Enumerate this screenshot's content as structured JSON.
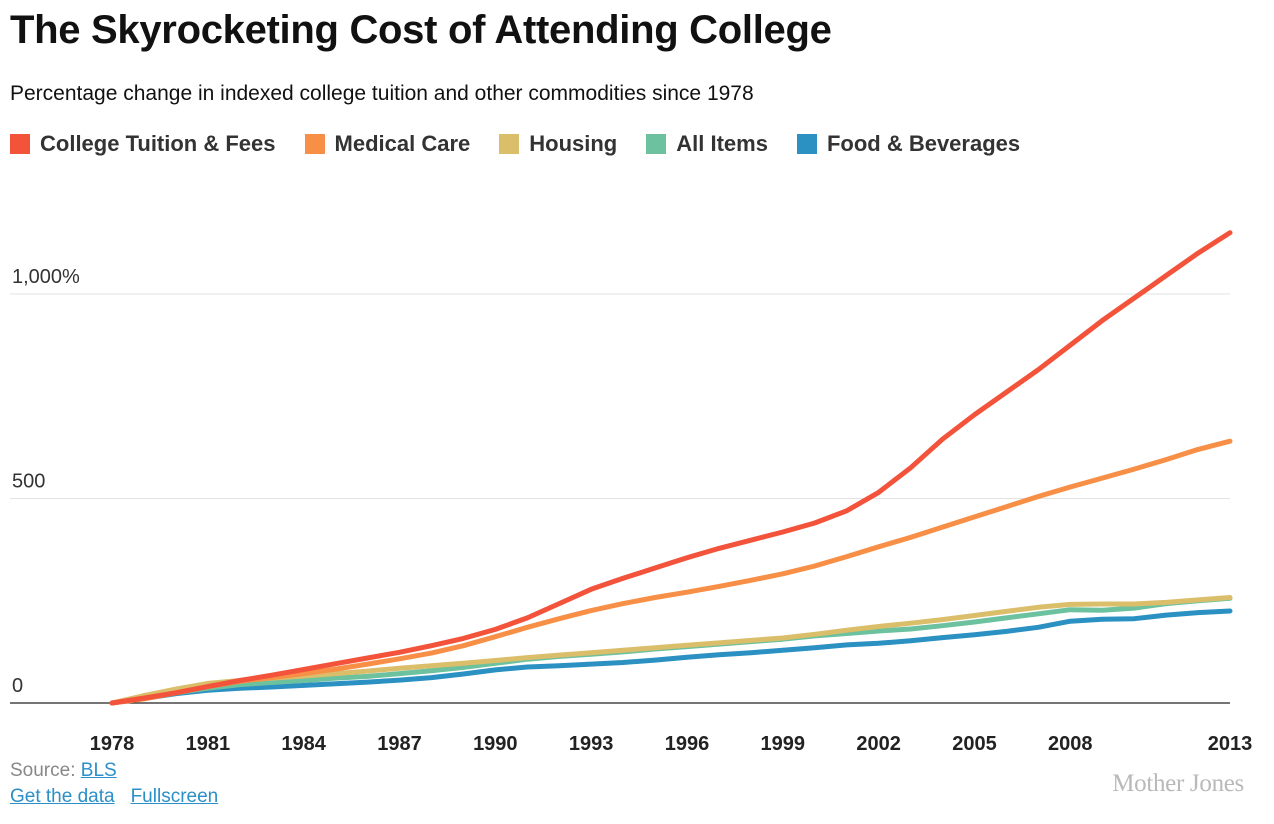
{
  "header": {
    "title": "The Skyrocketing Cost of Attending College",
    "subtitle": "Percentage change in indexed college tuition and other commodities since 1978"
  },
  "legend": [
    {
      "label": "College Tuition & Fees",
      "color": "#f3533a"
    },
    {
      "label": "Medical Care",
      "color": "#f78f47"
    },
    {
      "label": "Housing",
      "color": "#dbbe6a"
    },
    {
      "label": "All Items",
      "color": "#6cc19e"
    },
    {
      "label": "Food & Beverages",
      "color": "#2b90c2"
    }
  ],
  "footer": {
    "source_label": "Source:",
    "source_link": "BLS",
    "data_link": "Get the data",
    "fullscreen_link": "Fullscreen",
    "brand": "Mother Jones"
  },
  "chart_data": {
    "type": "line",
    "title": "The Skyrocketing Cost of Attending College",
    "subtitle": "Percentage change in indexed college tuition and other commodities since 1978",
    "xlabel": "",
    "ylabel": "",
    "xlim": [
      1978,
      2013
    ],
    "ylim": [
      0,
      1100
    ],
    "x_ticks": [
      1978,
      1981,
      1984,
      1987,
      1990,
      1993,
      1996,
      1999,
      2002,
      2005,
      2008,
      2013
    ],
    "y_ticks": [
      {
        "value": 0,
        "label": "0"
      },
      {
        "value": 500,
        "label": "500"
      },
      {
        "value": 1000,
        "label": "1,000%"
      }
    ],
    "grid": "horizontal",
    "legend_position": "top",
    "x": [
      1978,
      1979,
      1980,
      1981,
      1982,
      1983,
      1984,
      1985,
      1986,
      1987,
      1988,
      1989,
      1990,
      1991,
      1992,
      1993,
      1994,
      1995,
      1996,
      1997,
      1998,
      1999,
      2000,
      2001,
      2002,
      2003,
      2004,
      2005,
      2006,
      2007,
      2008,
      2009,
      2010,
      2011,
      2012,
      2013
    ],
    "series": [
      {
        "name": "College Tuition & Fees",
        "color": "#f3533a",
        "values": [
          0,
          12,
          25,
          40,
          55,
          68,
          82,
          96,
          110,
          124,
          140,
          158,
          180,
          208,
          243,
          278,
          305,
          330,
          355,
          378,
          398,
          418,
          440,
          470,
          515,
          575,
          645,
          705,
          760,
          815,
          875,
          935,
          990,
          1045,
          1100,
          1150
        ]
      },
      {
        "name": "Medical Care",
        "color": "#f78f47",
        "values": [
          0,
          10,
          25,
          40,
          53,
          62,
          72,
          83,
          95,
          108,
          122,
          140,
          162,
          185,
          206,
          226,
          243,
          258,
          271,
          285,
          300,
          316,
          335,
          358,
          382,
          405,
          430,
          455,
          480,
          505,
          528,
          550,
          572,
          595,
          620,
          640
        ]
      },
      {
        "name": "Housing",
        "color": "#dbbe6a",
        "values": [
          0,
          18,
          34,
          48,
          55,
          61,
          66,
          72,
          78,
          85,
          91,
          97,
          104,
          111,
          117,
          123,
          129,
          135,
          141,
          147,
          153,
          159,
          168,
          178,
          187,
          195,
          204,
          214,
          224,
          234,
          241,
          242,
          242,
          246,
          252,
          258
        ]
      },
      {
        "name": "All Items",
        "color": "#6cc19e",
        "values": [
          0,
          12,
          25,
          36,
          45,
          50,
          55,
          61,
          65,
          72,
          79,
          87,
          97,
          107,
          114,
          119,
          125,
          132,
          138,
          144,
          150,
          156,
          164,
          170,
          176,
          181,
          189,
          198,
          208,
          218,
          228,
          227,
          232,
          243,
          250,
          256
        ]
      },
      {
        "name": "Food & Beverages",
        "color": "#2b90c2",
        "values": [
          0,
          11,
          23,
          31,
          36,
          39,
          43,
          47,
          51,
          56,
          62,
          71,
          81,
          88,
          91,
          95,
          99,
          105,
          112,
          118,
          123,
          129,
          135,
          142,
          146,
          152,
          160,
          167,
          175,
          185,
          200,
          205,
          206,
          215,
          221,
          225
        ]
      }
    ]
  }
}
